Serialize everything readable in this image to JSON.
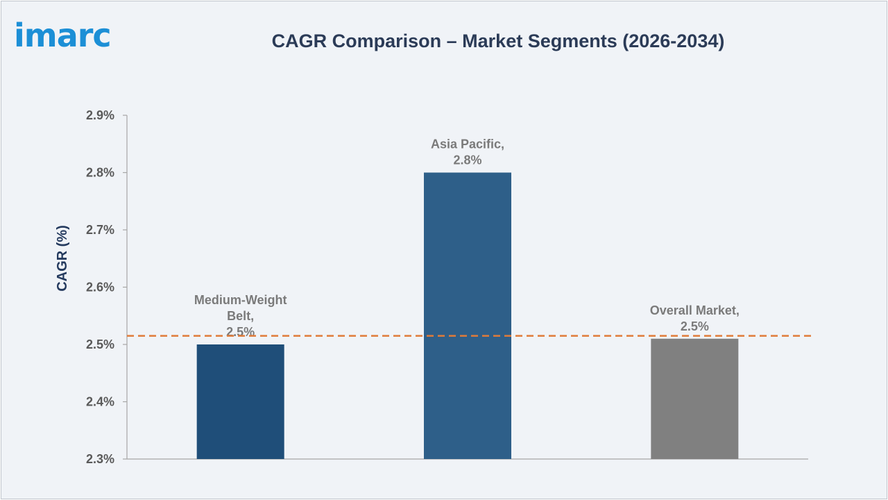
{
  "logo": "imarc",
  "colors": {
    "logo": "#1c8fd6",
    "title": "#2b3b57",
    "reference_line": "#e07b39"
  },
  "chart_data": {
    "type": "bar",
    "title": "CAGR Comparison – Market Segments (2026-2034)",
    "ylabel": "CAGR (%)",
    "xlabel": "",
    "ylim": [
      2.3,
      2.9
    ],
    "yticks": [
      2.3,
      2.4,
      2.5,
      2.6,
      2.7,
      2.8,
      2.9
    ],
    "ytick_labels": [
      "2.3%",
      "2.4%",
      "2.5%",
      "2.6%",
      "2.7%",
      "2.8%",
      "2.9%"
    ],
    "categories": [
      "Medium-Weight Belt",
      "Asia Pacific",
      "Overall Market"
    ],
    "values": [
      2.5,
      2.8,
      2.51
    ],
    "bar_colors": [
      "#1f4e79",
      "#2e5f89",
      "#808080"
    ],
    "data_labels": [
      [
        "Medium-Weight",
        "Belt,",
        "2.5%"
      ],
      [
        "Asia Pacific,",
        "2.8%"
      ],
      [
        "Overall Market,",
        "2.5%"
      ]
    ],
    "reference_line": {
      "value": 2.515,
      "style": "dashed"
    },
    "grid": false
  }
}
